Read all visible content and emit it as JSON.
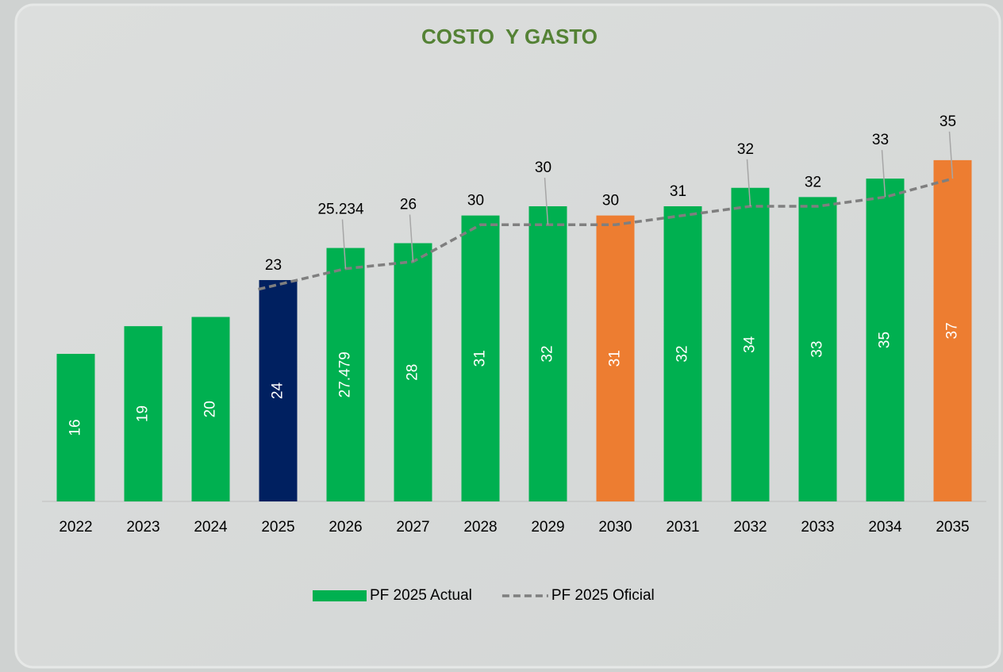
{
  "chart_data": {
    "type": "bar",
    "title": "COSTO  Y GASTO",
    "categories": [
      "2022",
      "2023",
      "2024",
      "2025",
      "2026",
      "2027",
      "2028",
      "2029",
      "2030",
      "2031",
      "2032",
      "2033",
      "2034",
      "2035"
    ],
    "ylim": [
      0,
      40
    ],
    "series": [
      {
        "name": "PF 2025 Actual",
        "type": "bar",
        "color": "#00b050",
        "colors": [
          "#00b050",
          "#00b050",
          "#00b050",
          "#002060",
          "#00b050",
          "#00b050",
          "#00b050",
          "#00b050",
          "#ed7d31",
          "#00b050",
          "#00b050",
          "#00b050",
          "#00b050",
          "#ed7d31"
        ],
        "values": [
          16,
          19,
          20,
          24,
          27.479,
          28,
          31,
          32,
          31,
          32,
          34,
          33,
          35,
          37
        ]
      },
      {
        "name": "PF 2025 Oficial",
        "type": "line",
        "color": "#7f7f7f",
        "dashed": true,
        "values": [
          null,
          null,
          null,
          23,
          25.234,
          26,
          30,
          30,
          30,
          31,
          32,
          32,
          33,
          35
        ]
      }
    ],
    "legend": "bottom"
  }
}
